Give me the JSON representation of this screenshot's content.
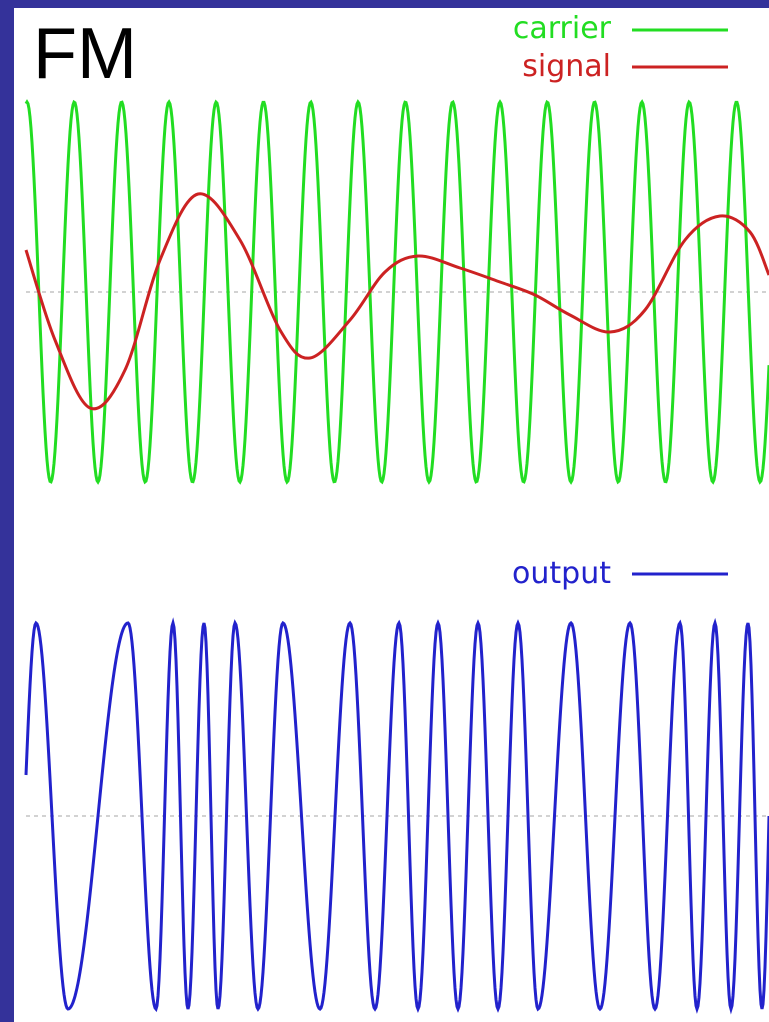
{
  "title": "FM",
  "legend": {
    "carrier": "carrier",
    "signal": "signal",
    "output": "output"
  },
  "colors": {
    "frame": "#34329a",
    "background": "#ffffff",
    "carrier": "#22dd22",
    "signal": "#cc2222",
    "output": "#2222cc",
    "baseline": "#b8b8b8"
  }
}
